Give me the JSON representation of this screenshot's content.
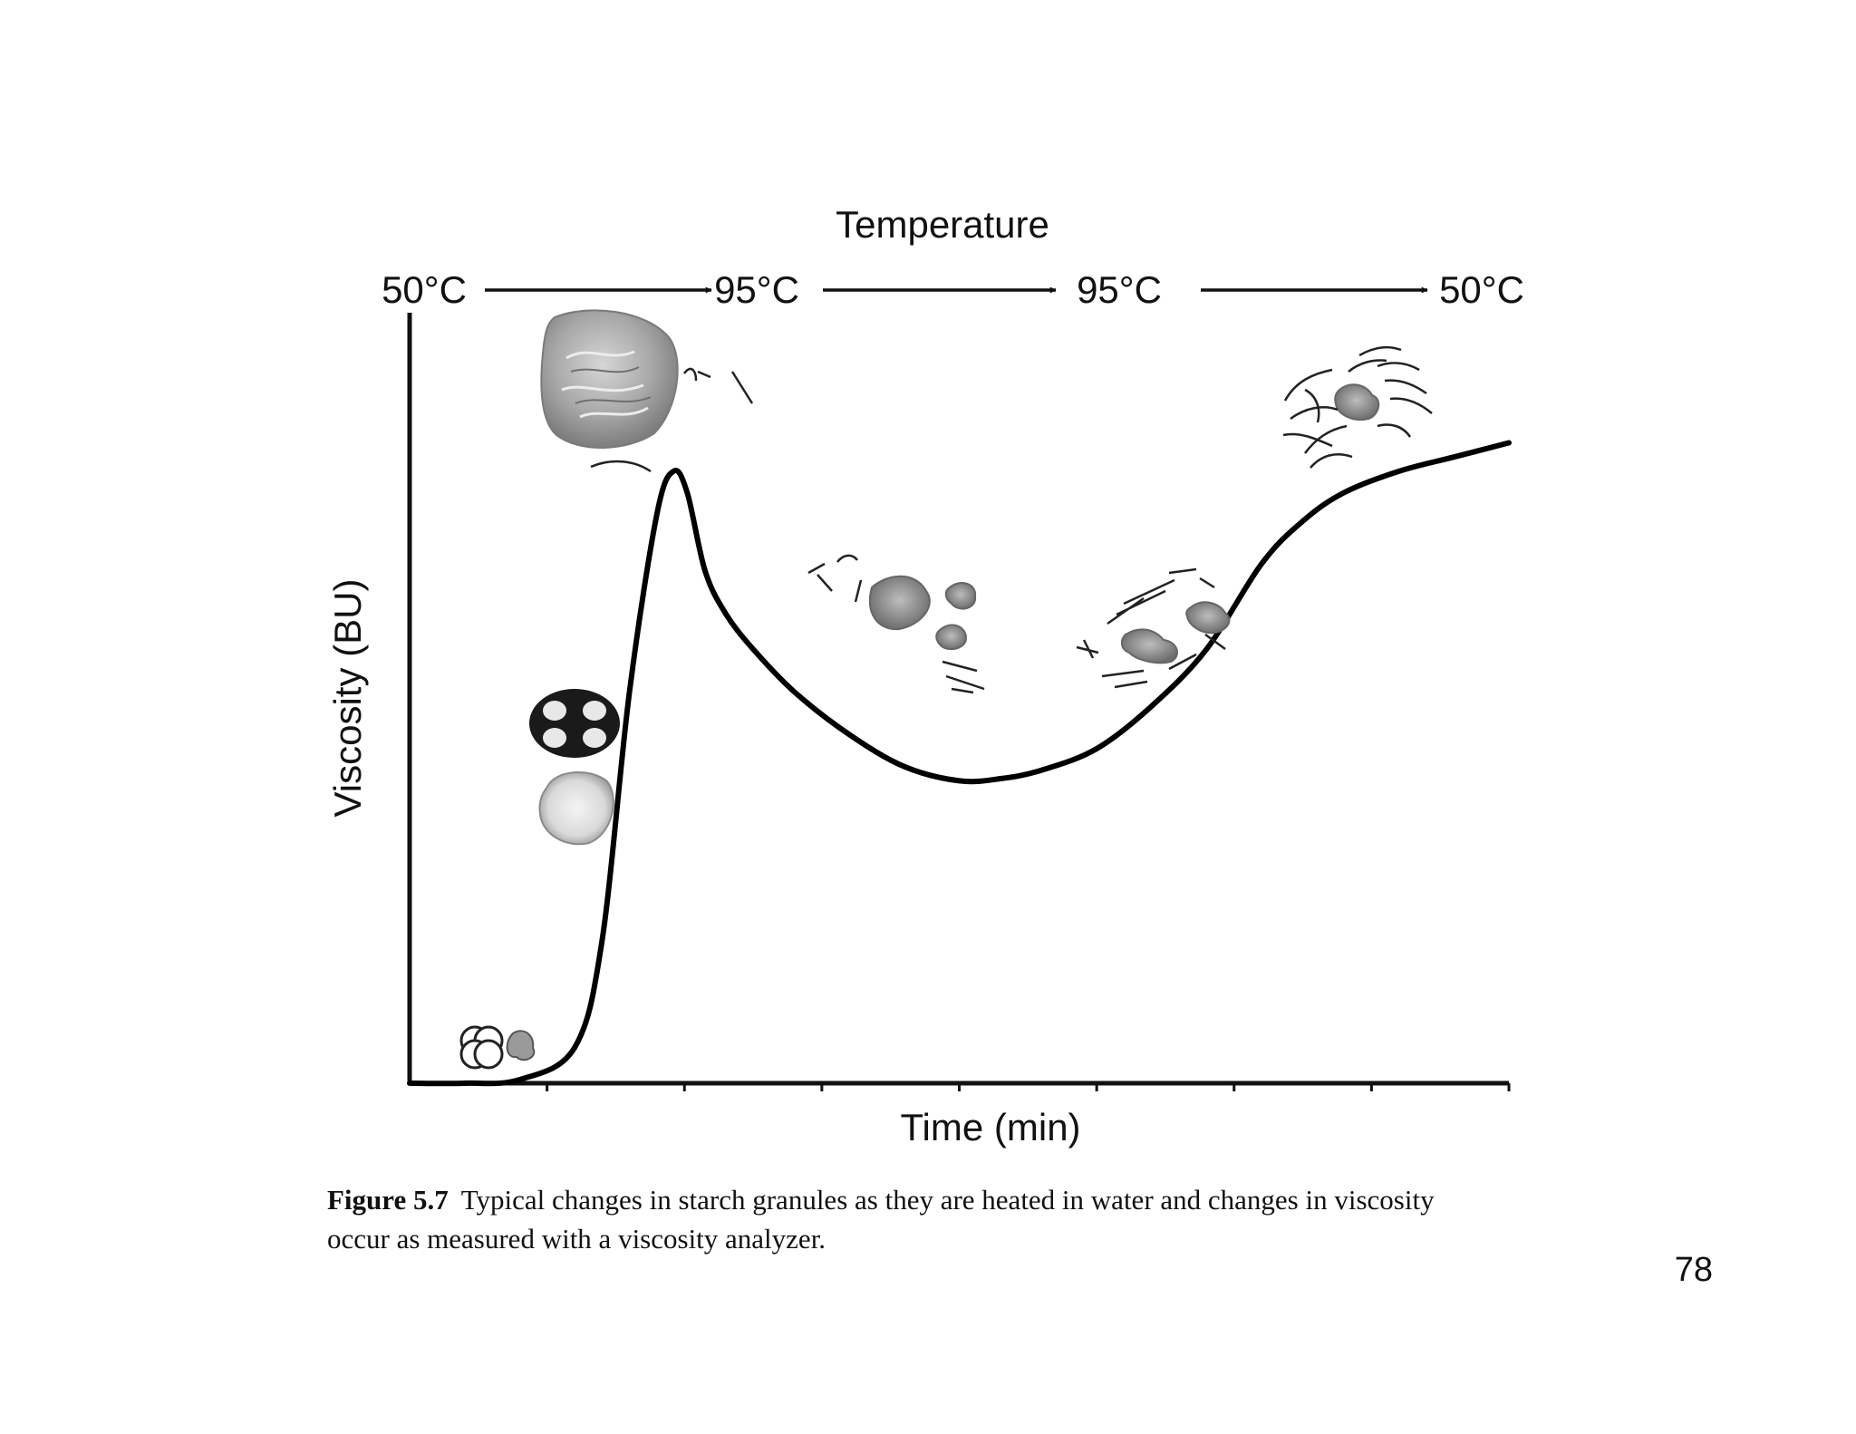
{
  "chart_data": {
    "type": "line",
    "title": "Temperature",
    "temperature_stages": [
      "50°C",
      "95°C",
      "95°C",
      "50°C"
    ],
    "xlabel": "Time (min)",
    "ylabel": "Viscosity (BU)",
    "xlim": [
      0,
      8
    ],
    "ylim": [
      0,
      1
    ],
    "grid": false,
    "legend": "none",
    "x_ticks": [
      1,
      2,
      3,
      4,
      5,
      6,
      7,
      8
    ],
    "series": [
      {
        "color": "#000000",
        "x": [
          0,
          0.4,
          0.8,
          1.2,
          1.4,
          1.6,
          1.8,
          1.92,
          2.02,
          2.15,
          2.3,
          2.5,
          2.8,
          3.2,
          3.6,
          4.0,
          4.3,
          4.6,
          5.0,
          5.4,
          5.8,
          6.2,
          6.5,
          6.8,
          7.2,
          7.6,
          8.0
        ],
        "values": [
          0.0,
          0.0,
          0.005,
          0.05,
          0.2,
          0.55,
          0.8,
          0.86,
          0.83,
          0.72,
          0.66,
          0.61,
          0.55,
          0.49,
          0.445,
          0.425,
          0.428,
          0.44,
          0.47,
          0.53,
          0.61,
          0.73,
          0.79,
          0.83,
          0.86,
          0.88,
          0.9
        ]
      }
    ],
    "caption_label": "Figure 5.7",
    "caption_text_line1": "Typical changes in starch granules as they are heated in water and changes in viscosity",
    "caption_text_line2": "occur as measured with a viscosity analyzer."
  },
  "page_number": "78",
  "illustration_icons": [
    "native-granule-icon",
    "polarized-granule-icon",
    "swollen-granule-icon",
    "fragmented-granule-icon",
    "amylose-strand-icon",
    "retrograded-network-icon"
  ]
}
